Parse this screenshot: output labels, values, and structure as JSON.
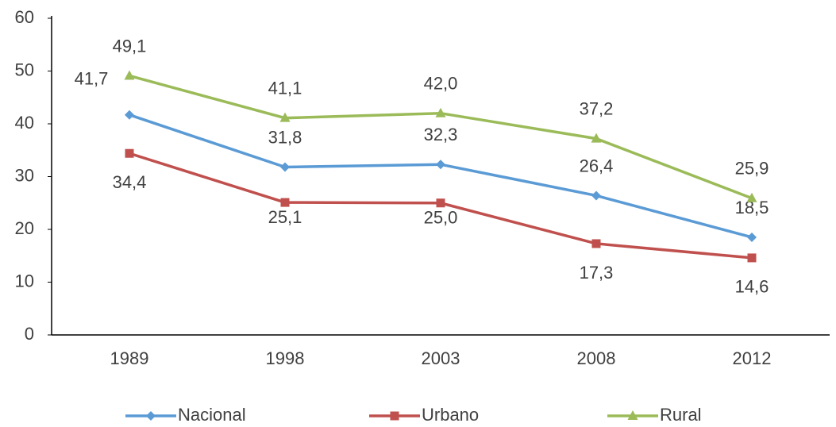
{
  "chart_data": {
    "type": "line",
    "categories": [
      "1989",
      "1998",
      "2003",
      "2008",
      "2012"
    ],
    "series": [
      {
        "name": "Nacional",
        "color": "#5b9bd5",
        "marker": "diamond",
        "values": [
          41.7,
          31.8,
          32.3,
          26.4,
          18.5
        ],
        "value_labels": [
          "41,7",
          "31,8",
          "32,3",
          "26,4",
          "18,5"
        ]
      },
      {
        "name": "Urbano",
        "color": "#c0504d",
        "marker": "square",
        "values": [
          34.4,
          25.1,
          25.0,
          17.3,
          14.6
        ],
        "value_labels": [
          "34,4",
          "25,1",
          "25,0",
          "17,3",
          "14,6"
        ]
      },
      {
        "name": "Rural",
        "color": "#9bbb59",
        "marker": "triangle",
        "values": [
          49.1,
          41.1,
          42.0,
          37.2,
          25.9
        ],
        "value_labels": [
          "49,1",
          "41,1",
          "42,0",
          "37,2",
          "25,9"
        ]
      }
    ],
    "ylim": [
      0,
      60
    ],
    "yticks": [
      0,
      10,
      20,
      30,
      40,
      50,
      60
    ],
    "grid": false,
    "legend": "bottom"
  }
}
